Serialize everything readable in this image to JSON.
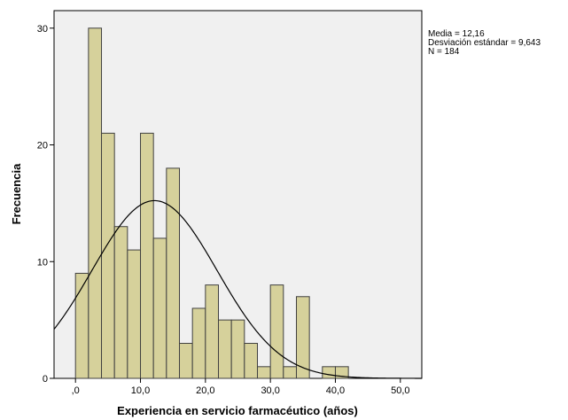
{
  "chart_data": {
    "type": "bar",
    "title": "",
    "xlabel": "Experiencia en servicio farmacéutico (años)",
    "ylabel": "Frecuencia",
    "x_ticks": [
      {
        "value": 0,
        "label": ",0"
      },
      {
        "value": 10,
        "label": "10,0"
      },
      {
        "value": 20,
        "label": "20,0"
      },
      {
        "value": 30,
        "label": "30,0"
      },
      {
        "value": 40,
        "label": "40,0"
      },
      {
        "value": 50,
        "label": "50,0"
      }
    ],
    "y_ticks": [
      {
        "value": 0,
        "label": "0"
      },
      {
        "value": 10,
        "label": "10"
      },
      {
        "value": 20,
        "label": "20"
      },
      {
        "value": 30,
        "label": "30"
      }
    ],
    "xlim": [
      -3.3,
      53.3
    ],
    "ylim": [
      0,
      31.5
    ],
    "bin_width": 2,
    "bins": [
      {
        "start": 0,
        "value": 9
      },
      {
        "start": 2,
        "value": 30
      },
      {
        "start": 4,
        "value": 21
      },
      {
        "start": 6,
        "value": 13
      },
      {
        "start": 8,
        "value": 11
      },
      {
        "start": 10,
        "value": 21
      },
      {
        "start": 12,
        "value": 12
      },
      {
        "start": 14,
        "value": 18
      },
      {
        "start": 16,
        "value": 3
      },
      {
        "start": 18,
        "value": 6
      },
      {
        "start": 20,
        "value": 8
      },
      {
        "start": 22,
        "value": 5
      },
      {
        "start": 24,
        "value": 5
      },
      {
        "start": 26,
        "value": 3
      },
      {
        "start": 28,
        "value": 1
      },
      {
        "start": 30,
        "value": 8
      },
      {
        "start": 32,
        "value": 1
      },
      {
        "start": 34,
        "value": 7
      },
      {
        "start": 38,
        "value": 1
      },
      {
        "start": 40,
        "value": 1
      }
    ],
    "normal_curve": {
      "mean": 12.16,
      "sd": 9.643,
      "n": 184
    },
    "stats_text": [
      "Media = 12,16",
      "Desviación estándar = 9,643",
      "N = 184"
    ],
    "grid": false,
    "colors": {
      "bar_fill": "#d6d19b",
      "bar_stroke": "#404040",
      "plot_bg": "#f0f0f0",
      "curve": "#000000"
    }
  }
}
